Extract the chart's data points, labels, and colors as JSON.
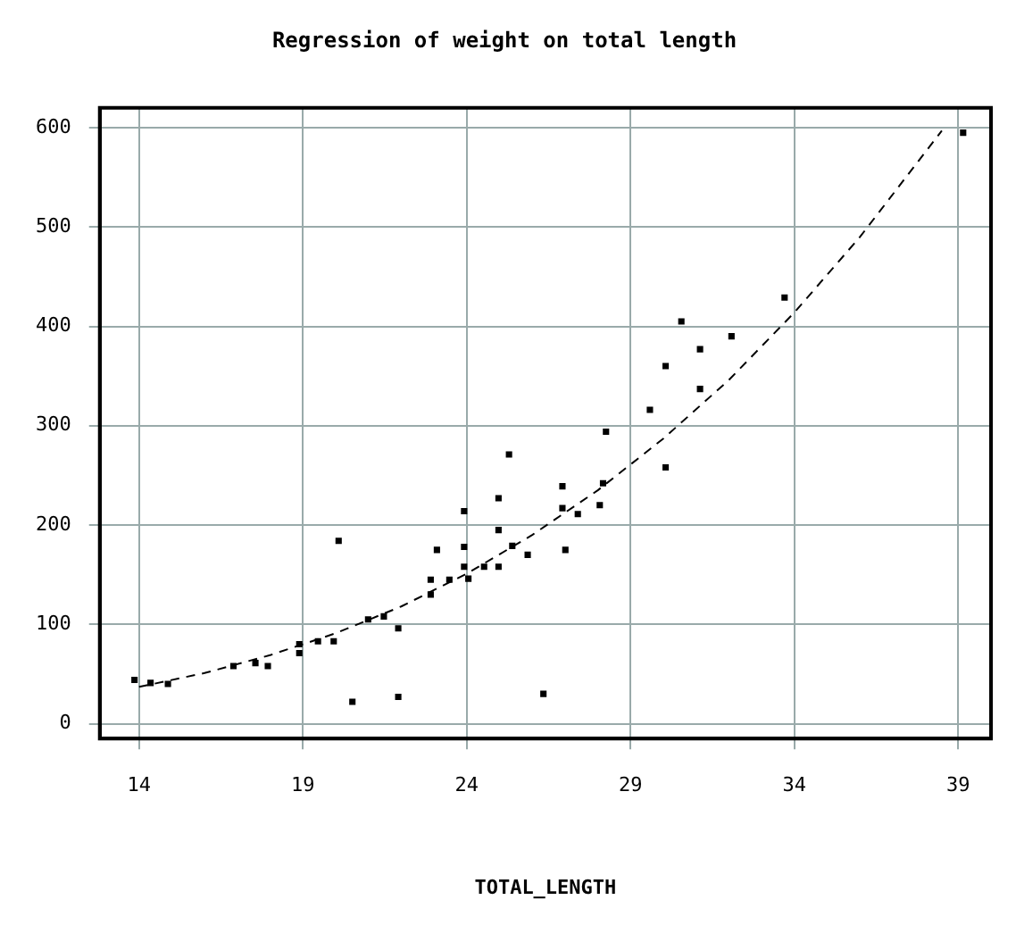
{
  "chart_data": {
    "type": "scatter",
    "title": "Regression of weight on total length",
    "xlabel": "TOTAL_LENGTH",
    "xlim": [
      12.8,
      40
    ],
    "xticks": [
      14,
      19,
      24,
      29,
      34,
      39
    ],
    "ylim": [
      -15,
      620
    ],
    "yticks": [
      0,
      100,
      200,
      300,
      400,
      500,
      600
    ],
    "grid": true,
    "legend": false,
    "marker": "square",
    "series": [
      {
        "type": "scatter",
        "color": "#000000",
        "x": [
          13.86,
          14.35,
          14.88,
          16.88,
          17.55,
          17.93,
          18.89,
          18.89,
          19.46,
          20.09,
          19.94,
          20.51,
          20.99,
          21.47,
          21.91,
          21.91,
          22.9,
          22.9,
          23.09,
          23.47,
          23.92,
          23.92,
          23.92,
          24.05,
          24.53,
          24.97,
          24.97,
          24.97,
          25.29,
          25.39,
          25.86,
          26.34,
          26.92,
          26.92,
          27.01,
          27.39,
          28.06,
          28.16,
          28.25,
          29.59,
          30.07,
          30.55,
          31.12,
          32.08,
          30.07,
          31.12,
          33.7,
          39.15
        ],
        "values": [
          44,
          41,
          40,
          58,
          61,
          58,
          80,
          71,
          83,
          184,
          83,
          22,
          105,
          108,
          96,
          27,
          145,
          130,
          175,
          145,
          214,
          178,
          158,
          146,
          158,
          158,
          195,
          227,
          271,
          179,
          170,
          30,
          239,
          217,
          175,
          211,
          220,
          242,
          294,
          316,
          258,
          405,
          377,
          390,
          360,
          337,
          429,
          595
        ]
      },
      {
        "type": "line",
        "color": "#000000",
        "line_style": "dashed",
        "marker": "none",
        "x": [
          14,
          16,
          18,
          20,
          22,
          24,
          26,
          28,
          30,
          32,
          34,
          36,
          38.5
        ],
        "values": [
          37,
          51,
          69,
          91,
          118,
          151,
          190,
          235,
          287,
          346,
          414,
          490,
          597
        ]
      }
    ]
  }
}
